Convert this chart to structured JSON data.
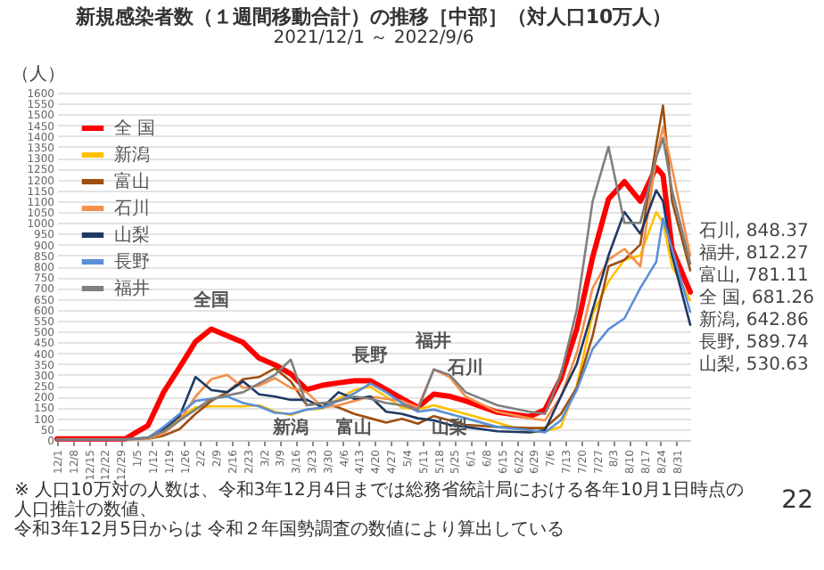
{
  "chart_data": {
    "type": "line",
    "title": "新規感染者数（１週間移動合計）の推移［中部］（対人口10万人）",
    "subtitle": "2021/12/1 ～ 2022/9/6",
    "ylabel": "（人）",
    "x": [
      "2021-12-01",
      "2021-12-31",
      "2022-01-10",
      "2022-01-17",
      "2022-01-24",
      "2022-01-31",
      "2022-02-07",
      "2022-02-14",
      "2022-02-21",
      "2022-02-28",
      "2022-03-07",
      "2022-03-14",
      "2022-03-21",
      "2022-03-28",
      "2022-04-04",
      "2022-04-11",
      "2022-04-18",
      "2022-04-25",
      "2022-05-02",
      "2022-05-09",
      "2022-05-16",
      "2022-05-23",
      "2022-05-30",
      "2022-06-13",
      "2022-06-27",
      "2022-07-04",
      "2022-07-11",
      "2022-07-18",
      "2022-07-25",
      "2022-08-01",
      "2022-08-08",
      "2022-08-15",
      "2022-08-22",
      "2022-08-25",
      "2022-08-29",
      "2022-09-06"
    ],
    "series": [
      {
        "name": "全 国",
        "color": "#ff0000",
        "values": [
          5,
          5,
          66,
          221,
          335,
          453,
          511,
          480,
          449,
          377,
          346,
          304,
          232,
          252,
          263,
          273,
          273,
          232,
          190,
          150,
          211,
          201,
          180,
          128,
          108,
          139,
          284,
          511,
          842,
          1110,
          1190,
          1100,
          1255,
          1220,
          880,
          681.26
        ]
      },
      {
        "name": "新潟",
        "color": "#ffc000",
        "values": [
          null,
          null,
          10,
          40,
          100,
          150,
          155,
          155,
          155,
          160,
          130,
          115,
          140,
          145,
          190,
          230,
          245,
          200,
          149,
          140,
          160,
          140,
          120,
          80,
          35,
          40,
          60,
          250,
          580,
          730,
          830,
          850,
          1050,
          1000,
          800,
          642.86
        ]
      },
      {
        "name": "富山",
        "color": "#9c4f12",
        "values": [
          3,
          3,
          5,
          20,
          50,
          120,
          180,
          220,
          280,
          290,
          330,
          270,
          160,
          170,
          150,
          120,
          100,
          80,
          97,
          75,
          110,
          90,
          70,
          60,
          55,
          55,
          120,
          240,
          480,
          800,
          830,
          900,
          1360,
          1540,
          1100,
          781.11
        ]
      },
      {
        "name": "石川",
        "color": "#f4904a",
        "values": [
          3,
          3,
          5,
          30,
          90,
          200,
          280,
          300,
          240,
          250,
          285,
          240,
          220,
          150,
          160,
          180,
          200,
          190,
          180,
          150,
          325,
          290,
          200,
          130,
          100,
          90,
          200,
          400,
          700,
          830,
          880,
          800,
          1300,
          1440,
          1250,
          848.37
        ]
      },
      {
        "name": "山梨",
        "color": "#1f3864",
        "values": [
          3,
          3,
          10,
          50,
          110,
          290,
          230,
          220,
          270,
          210,
          200,
          185,
          185,
          150,
          220,
          190,
          200,
          130,
          120,
          100,
          90,
          70,
          60,
          40,
          35,
          45,
          200,
          350,
          600,
          850,
          1050,
          950,
          1150,
          1100,
          850,
          530.63
        ]
      },
      {
        "name": "長野",
        "color": "#5b8fd6",
        "values": [
          3,
          3,
          10,
          60,
          120,
          180,
          190,
          200,
          170,
          155,
          125,
          120,
          140,
          150,
          180,
          215,
          260,
          220,
          170,
          130,
          140,
          120,
          100,
          60,
          45,
          35,
          90,
          230,
          420,
          510,
          560,
          700,
          820,
          1020,
          880,
          589.74
        ]
      },
      {
        "name": "福井",
        "color": "#7f7f7f",
        "values": [
          3,
          3,
          10,
          40,
          90,
          140,
          190,
          205,
          220,
          260,
          300,
          370,
          160,
          170,
          180,
          200,
          190,
          170,
          160,
          140,
          325,
          300,
          220,
          160,
          130,
          120,
          300,
          600,
          1100,
          1350,
          1000,
          1000,
          1300,
          1390,
          1150,
          812.27
        ]
      }
    ],
    "xlim": [
      "2021-12-01",
      "2022-09-06"
    ],
    "xticks": [
      {
        "value": "2021-12-01",
        "label": "12/1"
      },
      {
        "value": "2021-12-08",
        "label": "12/8"
      },
      {
        "value": "2021-12-15",
        "label": "12/15"
      },
      {
        "value": "2021-12-22",
        "label": "12/22"
      },
      {
        "value": "2021-12-29",
        "label": "12/29"
      },
      {
        "value": "2022-01-05",
        "label": "1/5"
      },
      {
        "value": "2022-01-12",
        "label": "1/12"
      },
      {
        "value": "2022-01-19",
        "label": "1/19"
      },
      {
        "value": "2022-01-26",
        "label": "1/26"
      },
      {
        "value": "2022-02-02",
        "label": "2/2"
      },
      {
        "value": "2022-02-09",
        "label": "2/9"
      },
      {
        "value": "2022-02-16",
        "label": "2/16"
      },
      {
        "value": "2022-02-23",
        "label": "2/23"
      },
      {
        "value": "2022-03-02",
        "label": "3/2"
      },
      {
        "value": "2022-03-09",
        "label": "3/9"
      },
      {
        "value": "2022-03-16",
        "label": "3/16"
      },
      {
        "value": "2022-03-23",
        "label": "3/23"
      },
      {
        "value": "2022-03-30",
        "label": "3/30"
      },
      {
        "value": "2022-04-06",
        "label": "4/6"
      },
      {
        "value": "2022-04-13",
        "label": "4/13"
      },
      {
        "value": "2022-04-20",
        "label": "4/20"
      },
      {
        "value": "2022-04-27",
        "label": "4/27"
      },
      {
        "value": "2022-05-04",
        "label": "5/4"
      },
      {
        "value": "2022-05-11",
        "label": "5/11"
      },
      {
        "value": "2022-05-18",
        "label": "5/18"
      },
      {
        "value": "2022-05-25",
        "label": "5/25"
      },
      {
        "value": "2022-06-01",
        "label": "6/1"
      },
      {
        "value": "2022-06-08",
        "label": "6/8"
      },
      {
        "value": "2022-06-15",
        "label": "6/15"
      },
      {
        "value": "2022-06-22",
        "label": "6/22"
      },
      {
        "value": "2022-06-29",
        "label": "6/29"
      },
      {
        "value": "2022-07-06",
        "label": "7/6"
      },
      {
        "value": "2022-07-13",
        "label": "7/13"
      },
      {
        "value": "2022-07-20",
        "label": "7/20"
      },
      {
        "value": "2022-07-27",
        "label": "7/27"
      },
      {
        "value": "2022-08-03",
        "label": "8/3"
      },
      {
        "value": "2022-08-10",
        "label": "8/10"
      },
      {
        "value": "2022-08-17",
        "label": "8/17"
      },
      {
        "value": "2022-08-24",
        "label": "8/24"
      },
      {
        "value": "2022-08-31",
        "label": "8/31"
      }
    ],
    "ylim": [
      0,
      1600
    ],
    "yticks": [
      0,
      50,
      100,
      150,
      200,
      250,
      300,
      350,
      400,
      450,
      500,
      550,
      600,
      650,
      700,
      750,
      800,
      850,
      900,
      950,
      1000,
      1050,
      1100,
      1150,
      1200,
      1250,
      1300,
      1350,
      1400,
      1450,
      1500,
      1550,
      1600
    ],
    "grid": "y",
    "legend": "top left",
    "line_style": "solid",
    "annotations": [
      {
        "text": "全国",
        "x": "2022-02-07",
        "y": 511
      },
      {
        "text": "長野",
        "x": "2022-04-18",
        "y": 260
      },
      {
        "text": "新潟",
        "x": "2022-03-14",
        "y": 115
      },
      {
        "text": "富山",
        "x": "2022-04-11",
        "y": 120
      },
      {
        "text": "山梨",
        "x": "2022-05-23",
        "y": 70
      },
      {
        "text": "福井",
        "x": "2022-05-16",
        "y": 325
      },
      {
        "text": "石川",
        "x": "2022-05-30",
        "y": 200
      },
      {
        "text": "石川, 848.37",
        "x": "2022-09-06",
        "y": 848.37
      },
      {
        "text": "福井, 812.27",
        "x": "2022-09-06",
        "y": 812.27
      },
      {
        "text": "富山, 781.11",
        "x": "2022-09-06",
        "y": 781.11
      },
      {
        "text": "全 国, 681.26",
        "x": "2022-09-06",
        "y": 681.26
      },
      {
        "text": "新潟, 642.86",
        "x": "2022-09-06",
        "y": 642.86
      },
      {
        "text": "長野, 589.74",
        "x": "2022-09-06",
        "y": 589.74
      },
      {
        "text": "山梨, 530.63",
        "x": "2022-09-06",
        "y": 530.63
      },
      "※ 人口10万対の人数は、令和3年12月4日までは総務省統計局における各年10月1日時点の人口推計の数値、",
      "令和3年12月5日からは 令和２年国勢調査の数値により算出している",
      "22"
    ]
  }
}
